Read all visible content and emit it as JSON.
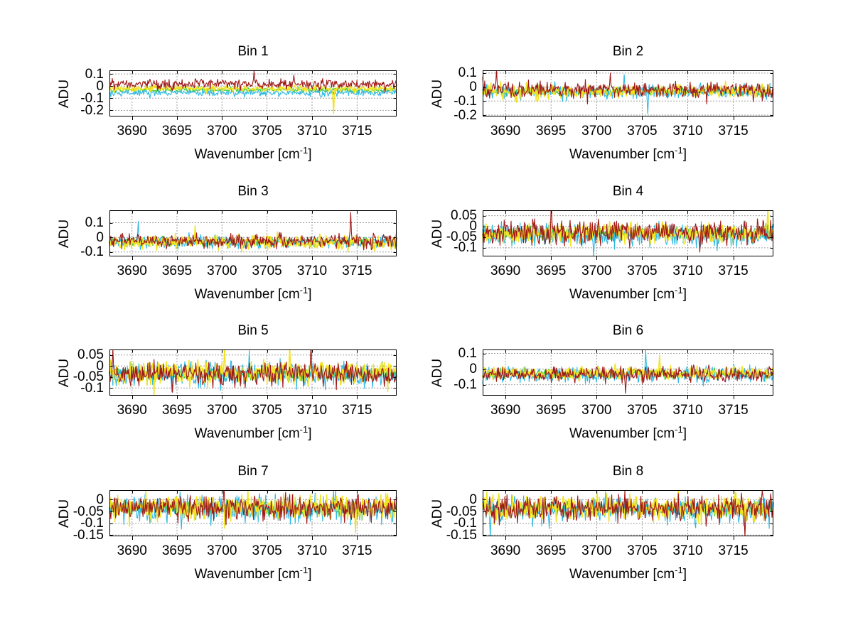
{
  "figure": {
    "background": "#ffffff",
    "ylabel": "ADU",
    "xlabel_prefix": "Wavenumber [cm",
    "xlabel_sup": "-1",
    "xlabel_suffix": "]",
    "x_ticks": [
      {
        "v": 3690,
        "label": "3690"
      },
      {
        "v": 3695,
        "label": "3695"
      },
      {
        "v": 3700,
        "label": "3700"
      },
      {
        "v": 3705,
        "label": "3705"
      },
      {
        "v": 3710,
        "label": "3710"
      },
      {
        "v": 3715,
        "label": "3715"
      }
    ],
    "xlim": [
      3687.5,
      3719.4
    ],
    "colors": {
      "trace_red": "#a01818",
      "trace_cyan": "#2db8e2",
      "trace_yellow": "#f2e321",
      "trace_green": "#35c835",
      "axis": "#000000",
      "grid": "#404040"
    }
  },
  "chart_data": [
    {
      "type": "line",
      "title": "Bin 1",
      "ylabel": "ADU",
      "xlabel": "Wavenumber [cm^-1]",
      "xlim": [
        3687.5,
        3719.4
      ],
      "ylim": [
        -0.25,
        0.13
      ],
      "grid": true,
      "n_points": 420,
      "y_ticks": [
        {
          "v": 0.1,
          "label": "0.1"
        },
        {
          "v": 0,
          "label": "0"
        },
        {
          "v": -0.1,
          "label": "-0.1"
        },
        {
          "v": -0.2,
          "label": "-0.2"
        }
      ],
      "series": [
        {
          "name": "trace-green",
          "color": "#35c835",
          "mean": -0.03,
          "std": 0.011,
          "seed": 11,
          "spikes": []
        },
        {
          "name": "trace-cyan",
          "color": "#2db8e2",
          "mean": -0.055,
          "std": 0.014,
          "seed": 12,
          "spikes": [
            [
              3692.0,
              -0.1
            ]
          ]
        },
        {
          "name": "trace-yellow",
          "color": "#f2e321",
          "mean": -0.02,
          "std": 0.012,
          "seed": 13,
          "spikes": [
            [
              3712.4,
              -0.225
            ]
          ]
        },
        {
          "name": "trace-red",
          "color": "#a01818",
          "mean": 0.018,
          "std": 0.02,
          "seed": 14,
          "spikes": [
            [
              3703.6,
              0.125
            ],
            [
              3708.0,
              0.09
            ]
          ]
        }
      ]
    },
    {
      "type": "line",
      "title": "Bin 2",
      "ylabel": "ADU",
      "xlabel": "Wavenumber [cm^-1]",
      "xlim": [
        3687.5,
        3719.4
      ],
      "ylim": [
        -0.21,
        0.12
      ],
      "grid": true,
      "n_points": 420,
      "y_ticks": [
        {
          "v": 0.1,
          "label": "0.1"
        },
        {
          "v": 0,
          "label": "0"
        },
        {
          "v": -0.1,
          "label": "-0.1"
        },
        {
          "v": -0.2,
          "label": "-0.2"
        }
      ],
      "series": [
        {
          "name": "trace-green",
          "color": "#35c835",
          "mean": -0.03,
          "std": 0.014,
          "seed": 21,
          "spikes": []
        },
        {
          "name": "trace-cyan",
          "color": "#2db8e2",
          "mean": -0.033,
          "std": 0.024,
          "seed": 22,
          "spikes": [
            [
              3705.6,
              -0.19
            ],
            [
              3703.0,
              0.09
            ]
          ]
        },
        {
          "name": "trace-yellow",
          "color": "#f2e321",
          "mean": -0.028,
          "std": 0.024,
          "seed": 23,
          "spikes": [
            [
              3691.2,
              -0.11
            ]
          ]
        },
        {
          "name": "trace-red",
          "color": "#a01818",
          "mean": -0.02,
          "std": 0.027,
          "seed": 24,
          "spikes": [
            [
              3689.0,
              0.13
            ],
            [
              3701.5,
              0.1
            ]
          ]
        }
      ]
    },
    {
      "type": "line",
      "title": "Bin 3",
      "ylabel": "ADU",
      "xlabel": "Wavenumber [cm^-1]",
      "xlim": [
        3687.5,
        3719.4
      ],
      "ylim": [
        -0.13,
        0.185
      ],
      "grid": true,
      "n_points": 420,
      "y_ticks": [
        {
          "v": 0.1,
          "label": "0.1"
        },
        {
          "v": 0,
          "label": "0"
        },
        {
          "v": -0.1,
          "label": "-0.1"
        }
      ],
      "series": [
        {
          "name": "trace-green",
          "color": "#35c835",
          "mean": -0.03,
          "std": 0.014,
          "seed": 31,
          "spikes": []
        },
        {
          "name": "trace-cyan",
          "color": "#2db8e2",
          "mean": -0.03,
          "std": 0.022,
          "seed": 32,
          "spikes": [
            [
              3690.7,
              0.11
            ]
          ]
        },
        {
          "name": "trace-yellow",
          "color": "#f2e321",
          "mean": -0.035,
          "std": 0.024,
          "seed": 33,
          "spikes": [
            [
              3697.0,
              0.08
            ]
          ]
        },
        {
          "name": "trace-red",
          "color": "#a01818",
          "mean": -0.025,
          "std": 0.024,
          "seed": 34,
          "spikes": [
            [
              3714.3,
              0.17
            ]
          ]
        }
      ]
    },
    {
      "type": "line",
      "title": "Bin 4",
      "ylabel": "ADU",
      "xlabel": "Wavenumber [cm^-1]",
      "xlim": [
        3687.5,
        3719.4
      ],
      "ylim": [
        -0.14,
        0.075
      ],
      "grid": true,
      "n_points": 420,
      "y_ticks": [
        {
          "v": 0.05,
          "label": "0.05"
        },
        {
          "v": 0,
          "label": "0"
        },
        {
          "v": -0.05,
          "label": "-0.05"
        },
        {
          "v": -0.1,
          "label": "-0.1"
        }
      ],
      "series": [
        {
          "name": "trace-green",
          "color": "#35c835",
          "mean": -0.032,
          "std": 0.014,
          "seed": 41,
          "spikes": []
        },
        {
          "name": "trace-cyan",
          "color": "#2db8e2",
          "mean": -0.042,
          "std": 0.026,
          "seed": 42,
          "spikes": [
            [
              3699.7,
              -0.14
            ]
          ]
        },
        {
          "name": "trace-yellow",
          "color": "#f2e321",
          "mean": -0.03,
          "std": 0.024,
          "seed": 43,
          "spikes": [
            [
              3718.8,
              0.09
            ]
          ]
        },
        {
          "name": "trace-red",
          "color": "#a01818",
          "mean": -0.027,
          "std": 0.026,
          "seed": 44,
          "spikes": [
            [
              3695.0,
              0.12
            ],
            [
              3711.3,
              -0.12
            ]
          ]
        }
      ]
    },
    {
      "type": "line",
      "title": "Bin 5",
      "ylabel": "ADU",
      "xlabel": "Wavenumber [cm^-1]",
      "xlim": [
        3687.5,
        3719.4
      ],
      "ylim": [
        -0.135,
        0.075
      ],
      "grid": true,
      "n_points": 420,
      "y_ticks": [
        {
          "v": 0.05,
          "label": "0.05"
        },
        {
          "v": 0,
          "label": "0"
        },
        {
          "v": -0.05,
          "label": "-0.05"
        },
        {
          "v": -0.1,
          "label": "-0.1"
        }
      ],
      "series": [
        {
          "name": "trace-green",
          "color": "#35c835",
          "mean": -0.035,
          "std": 0.014,
          "seed": 51,
          "spikes": []
        },
        {
          "name": "trace-cyan",
          "color": "#2db8e2",
          "mean": -0.04,
          "std": 0.028,
          "seed": 52,
          "spikes": [
            [
              3703.0,
              0.07
            ]
          ]
        },
        {
          "name": "trace-yellow",
          "color": "#f2e321",
          "mean": -0.028,
          "std": 0.028,
          "seed": 53,
          "spikes": [
            [
              3700.3,
              0.09
            ],
            [
              3707.5,
              0.09
            ]
          ]
        },
        {
          "name": "trace-red",
          "color": "#a01818",
          "mean": -0.038,
          "std": 0.024,
          "seed": 54,
          "spikes": [
            [
              3687.9,
              0.08
            ],
            [
              3709.9,
              0.1
            ],
            [
              3694.5,
              -0.12
            ]
          ]
        }
      ]
    },
    {
      "type": "line",
      "title": "Bin 6",
      "ylabel": "ADU",
      "xlabel": "Wavenumber [cm^-1]",
      "xlim": [
        3687.5,
        3719.4
      ],
      "ylim": [
        -0.17,
        0.125
      ],
      "grid": true,
      "n_points": 420,
      "y_ticks": [
        {
          "v": 0.1,
          "label": "0.1"
        },
        {
          "v": 0,
          "label": "0"
        },
        {
          "v": -0.1,
          "label": "-0.1"
        }
      ],
      "series": [
        {
          "name": "trace-green",
          "color": "#35c835",
          "mean": -0.03,
          "std": 0.014,
          "seed": 61,
          "spikes": []
        },
        {
          "name": "trace-cyan",
          "color": "#2db8e2",
          "mean": -0.035,
          "std": 0.024,
          "seed": 62,
          "spikes": [
            [
              3705.4,
              0.12
            ]
          ]
        },
        {
          "name": "trace-yellow",
          "color": "#f2e321",
          "mean": -0.025,
          "std": 0.02,
          "seed": 63,
          "spikes": [
            [
              3706.9,
              0.09
            ]
          ]
        },
        {
          "name": "trace-red",
          "color": "#a01818",
          "mean": -0.035,
          "std": 0.023,
          "seed": 64,
          "spikes": [
            [
              3703.2,
              -0.155
            ]
          ]
        }
      ]
    },
    {
      "type": "line",
      "title": "Bin 7",
      "ylabel": "ADU",
      "xlabel": "Wavenumber [cm^-1]",
      "xlim": [
        3687.5,
        3719.4
      ],
      "ylim": [
        -0.155,
        0.04
      ],
      "grid": true,
      "n_points": 420,
      "y_ticks": [
        {
          "v": 0,
          "label": "0"
        },
        {
          "v": -0.05,
          "label": "-0.05"
        },
        {
          "v": -0.1,
          "label": "-0.1"
        },
        {
          "v": -0.15,
          "label": "-0.15"
        }
      ],
      "series": [
        {
          "name": "trace-green",
          "color": "#35c835",
          "mean": -0.038,
          "std": 0.014,
          "seed": 71,
          "spikes": []
        },
        {
          "name": "trace-cyan",
          "color": "#2db8e2",
          "mean": -0.04,
          "std": 0.026,
          "seed": 72,
          "spikes": [
            [
              3695.5,
              -0.125
            ]
          ]
        },
        {
          "name": "trace-yellow",
          "color": "#f2e321",
          "mean": -0.033,
          "std": 0.026,
          "seed": 73,
          "spikes": [
            [
              3714.8,
              -0.14
            ]
          ]
        },
        {
          "name": "trace-red",
          "color": "#a01818",
          "mean": -0.035,
          "std": 0.026,
          "seed": 74,
          "spikes": [
            [
              3700.2,
              0.06
            ]
          ]
        }
      ]
    },
    {
      "type": "line",
      "title": "Bin 8",
      "ylabel": "ADU",
      "xlabel": "Wavenumber [cm^-1]",
      "xlim": [
        3687.5,
        3719.4
      ],
      "ylim": [
        -0.155,
        0.04
      ],
      "grid": true,
      "n_points": 420,
      "y_ticks": [
        {
          "v": 0,
          "label": "0"
        },
        {
          "v": -0.05,
          "label": "-0.05"
        },
        {
          "v": -0.1,
          "label": "-0.1"
        },
        {
          "v": -0.15,
          "label": "-0.15"
        }
      ],
      "series": [
        {
          "name": "trace-green",
          "color": "#35c835",
          "mean": -0.04,
          "std": 0.014,
          "seed": 81,
          "spikes": []
        },
        {
          "name": "trace-cyan",
          "color": "#2db8e2",
          "mean": -0.045,
          "std": 0.027,
          "seed": 82,
          "spikes": [
            [
              3688.3,
              -0.16
            ]
          ]
        },
        {
          "name": "trace-yellow",
          "color": "#f2e321",
          "mean": -0.035,
          "std": 0.026,
          "seed": 83,
          "spikes": [
            [
              3709.0,
              0.05
            ]
          ]
        },
        {
          "name": "trace-red",
          "color": "#a01818",
          "mean": -0.035,
          "std": 0.027,
          "seed": 84,
          "spikes": [
            [
              3716.3,
              -0.16
            ]
          ]
        }
      ]
    }
  ]
}
